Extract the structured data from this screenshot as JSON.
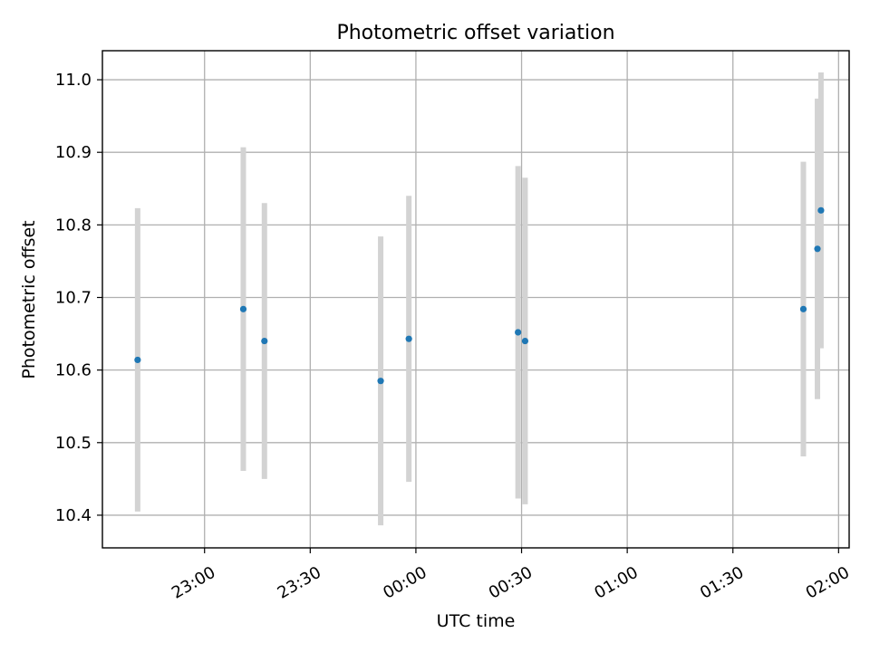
{
  "chart_data": {
    "type": "scatter",
    "title": "Photometric offset variation",
    "xlabel": "UTC time",
    "ylabel": "Photometric offset",
    "x_ticks": [
      "23:00",
      "23:30",
      "00:00",
      "00:30",
      "01:00",
      "01:30",
      "02:00"
    ],
    "y_ticks": [
      "10.4",
      "10.5",
      "10.6",
      "10.7",
      "10.8",
      "10.9",
      "11.0"
    ],
    "xlim": [
      "22:31",
      "02:03"
    ],
    "ylim": [
      10.355,
      11.04
    ],
    "grid": true,
    "colors": {
      "point": "#1f77b4",
      "errorbar": "#d3d3d3",
      "grid": "#b0b0b0"
    },
    "points": [
      {
        "x": "22:41",
        "y": 10.614,
        "yerr": 0.209
      },
      {
        "x": "23:11",
        "y": 10.684,
        "yerr": 0.223
      },
      {
        "x": "23:17",
        "y": 10.64,
        "yerr": 0.19
      },
      {
        "x": "23:50",
        "y": 10.585,
        "yerr": 0.199
      },
      {
        "x": "23:58",
        "y": 10.643,
        "yerr": 0.197
      },
      {
        "x": "00:29",
        "y": 10.652,
        "yerr": 0.229
      },
      {
        "x": "00:31",
        "y": 10.64,
        "yerr": 0.225
      },
      {
        "x": "01:50",
        "y": 10.684,
        "yerr": 0.203
      },
      {
        "x": "01:54",
        "y": 10.767,
        "yerr": 0.207
      },
      {
        "x": "01:55",
        "y": 10.82,
        "yerr": 0.19
      }
    ]
  }
}
